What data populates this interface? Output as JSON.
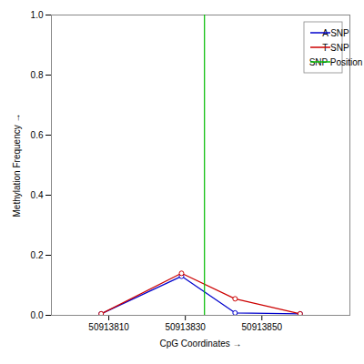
{
  "chart_data": {
    "type": "line",
    "xlabel": "CpG Coordinates",
    "ylabel": "Methylation Frequency",
    "series": [
      {
        "name": "A SNP",
        "color": "#0000CC",
        "marker": "circle",
        "x": [
          50913808,
          50913829,
          50913843,
          50913860
        ],
        "values": [
          0.005,
          0.13,
          0.008,
          0.005
        ]
      },
      {
        "name": "T SNP",
        "color": "#CC0000",
        "marker": "circle",
        "x": [
          50913808,
          50913829,
          50913843,
          50913860
        ],
        "values": [
          0.005,
          0.14,
          0.055,
          0.005
        ]
      },
      {
        "name": "SNP Position",
        "type": "rule",
        "color": "#00BB00",
        "x": 50913835
      }
    ],
    "xlim": [
      50913795,
      50913873
    ],
    "xticks": [
      50913810,
      50913830,
      50913850
    ],
    "ylim": [
      0.0,
      1.0
    ],
    "yticks": [
      {
        "value": 0.0,
        "label": "0.0"
      },
      0.2,
      0.4,
      0.6,
      0.8,
      {
        "value": 1.0,
        "label": "1.0"
      }
    ],
    "grid": false,
    "legend": "upper right"
  }
}
